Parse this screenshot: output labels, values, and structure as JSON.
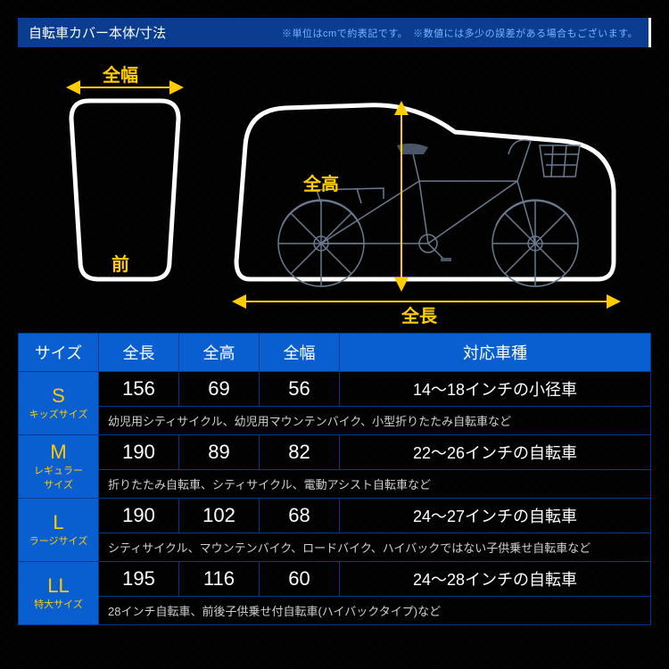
{
  "header": {
    "title": "自転車カバー本体/寸法",
    "disclaimer": "※単位はcmで約表記です。　※数値には多少の誤差がある場合もございます。"
  },
  "diagram": {
    "label_width": "全幅",
    "label_front": "前",
    "label_height": "全高",
    "label_length": "全長",
    "cover_stroke": "#ffffff",
    "bike_stroke": "#6b7a8f",
    "accent": "#ffcc00"
  },
  "table": {
    "headers": [
      "サイズ",
      "全長",
      "全高",
      "全幅",
      "対応車種"
    ],
    "rows": [
      {
        "size": "S",
        "sub": "キッズサイズ",
        "length": "156",
        "height": "69",
        "width": "56",
        "type": "14～18インチの小径車",
        "desc": "幼児用シティサイクル、幼児用マウンテンバイク、小型折りたたみ自転車など"
      },
      {
        "size": "M",
        "sub": "レギュラー\nサイズ",
        "length": "190",
        "height": "89",
        "width": "82",
        "type": "22～26インチの自転車",
        "desc": "折りたたみ自転車、シティサイクル、電動アシスト自転車など"
      },
      {
        "size": "L",
        "sub": "ラージサイズ",
        "length": "190",
        "height": "102",
        "width": "68",
        "type": "24～27インチの自転車",
        "desc": "シティサイクル、マウンテンバイク、ロードバイク、ハイバックではない子供乗せ自転車など"
      },
      {
        "size": "LL",
        "sub": "特大サイズ",
        "length": "195",
        "height": "116",
        "width": "60",
        "type": "24～28インチの自転車",
        "desc": "28インチ自転車、前後子供乗せ付自転車(ハイバックタイプ)など"
      }
    ]
  },
  "colors": {
    "header_bg": "#0a3d8f",
    "th_bg": "#0a5fd0",
    "border": "#003a8c",
    "accent": "#ffcc00",
    "text": "#ffffff"
  }
}
